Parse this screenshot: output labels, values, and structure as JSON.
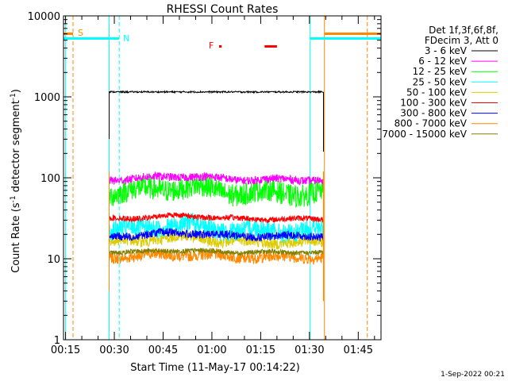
{
  "chart_data": {
    "type": "line",
    "title": "RHESSI Count Rates",
    "xlabel": "Start Time (11-May-17 00:14:22)",
    "ylabel_main": "Count Rate (s",
    "ylabel_sup": "-1",
    "ylabel_tail": " detector segment",
    "ylabel_end": ")",
    "y_scale": "log",
    "ylim": [
      1,
      10000
    ],
    "y_ticks": [
      {
        "value": 1,
        "label": "1"
      },
      {
        "value": 10,
        "label": "10"
      },
      {
        "value": 100,
        "label": "100"
      },
      {
        "value": 1000,
        "label": "1000"
      },
      {
        "value": 10000,
        "label": "10000"
      }
    ],
    "xlim_minutes": [
      14.37,
      112
    ],
    "x_ticks": [
      {
        "minute": 15,
        "label": "00:15"
      },
      {
        "minute": 30,
        "label": "00:30"
      },
      {
        "minute": 45,
        "label": "00:45"
      },
      {
        "minute": 60,
        "label": "01:00"
      },
      {
        "minute": 75,
        "label": "01:15"
      },
      {
        "minute": 90,
        "label": "01:30"
      },
      {
        "minute": 105,
        "label": "01:45"
      }
    ],
    "legend_header": [
      "Det 1f,3f,6f,8f,",
      "FDecim 3, Att 0"
    ],
    "legend_position": "right",
    "data_interval_minutes": [
      28.4,
      94.3
    ],
    "series": [
      {
        "name": "3 - 6 keV",
        "color": "#000000",
        "level": 1150,
        "noise": 0.02,
        "bump": 0.0
      },
      {
        "name": "6 - 12 keV",
        "color": "#ff00ff",
        "level": 95,
        "noise": 0.05,
        "bump": 0.1
      },
      {
        "name": "12 - 25 keV",
        "color": "#00ff00",
        "level": 65,
        "noise": 0.14,
        "bump": 0.18
      },
      {
        "name": "25 - 50 keV",
        "color": "#00ffff",
        "level": 22,
        "noise": 0.12,
        "bump": 0.2
      },
      {
        "name": "50 - 100 keV",
        "color": "#ddcc00",
        "level": 16,
        "noise": 0.07,
        "bump": 0.15
      },
      {
        "name": "100 - 300 keV",
        "color": "#ff0000",
        "level": 31,
        "noise": 0.035,
        "bump": 0.1
      },
      {
        "name": "300 - 800 keV",
        "color": "#0000ff",
        "level": 19,
        "noise": 0.05,
        "bump": 0.1
      },
      {
        "name": "800 - 7000 keV",
        "color": "#ff8800",
        "level": 10.5,
        "noise": 0.07,
        "bump": 0.08
      },
      {
        "name": "7000 - 15000 keV",
        "color": "#808000",
        "level": 12,
        "noise": 0.03,
        "bump": 0.05
      }
    ],
    "markers": {
      "saa": {
        "label": "S",
        "color": "#ff8800",
        "intervals": [
          [
            14.37,
            17.3
          ],
          [
            94.6,
            112
          ]
        ]
      },
      "night": {
        "label": "N",
        "color": "#00ffff",
        "intervals": [
          [
            14.37,
            31.5
          ],
          [
            90.2,
            112
          ]
        ]
      },
      "flare": {
        "label": "F",
        "color": "#ff0000",
        "intervals": [
          [
            62.2,
            63.0
          ],
          [
            76.2,
            80.0
          ]
        ]
      }
    },
    "vlines": [
      {
        "minute": 15.0,
        "color": "#00ffff",
        "style": "solid"
      },
      {
        "minute": 17.3,
        "color": "#ff8800",
        "style": "dashed"
      },
      {
        "minute": 28.4,
        "color": "#00ffff",
        "style": "solid"
      },
      {
        "minute": 31.5,
        "color": "#00ffff",
        "style": "dashed"
      },
      {
        "minute": 90.2,
        "color": "#00ffff",
        "style": "solid"
      },
      {
        "minute": 94.6,
        "color": "#ff8800",
        "style": "solid"
      },
      {
        "minute": 107.8,
        "color": "#ff8800",
        "style": "dashed"
      }
    ]
  },
  "footer_date": "1-Sep-2022 00:21"
}
